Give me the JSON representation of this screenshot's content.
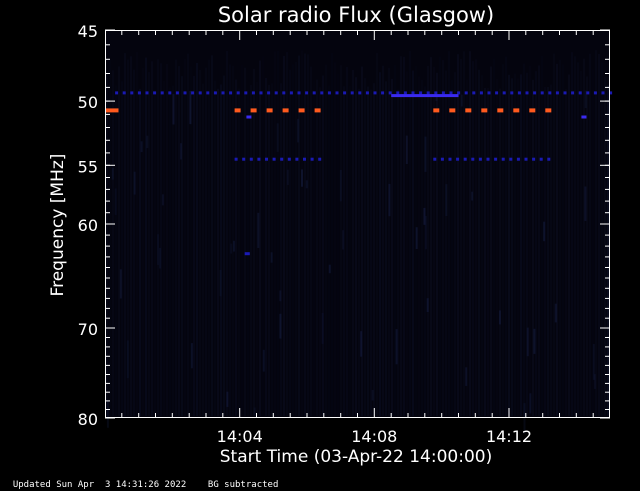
{
  "chart_data": {
    "type": "heatmap",
    "title": "Solar radio Flux (Glasgow)",
    "xlabel": "Start Time (03-Apr-22 14:00:00)",
    "ylabel": "Frequency [MHz]",
    "x_range_minutes": [
      0,
      15
    ],
    "x_ticks": [
      {
        "minute": 4,
        "label": "14:04"
      },
      {
        "minute": 8,
        "label": "14:08"
      },
      {
        "minute": 12,
        "label": "14:12"
      }
    ],
    "y_range_mhz": [
      45,
      80
    ],
    "y_scale": "log",
    "y_inverted": true,
    "y_ticks": [
      {
        "value": 45,
        "label": "45"
      },
      {
        "value": 50,
        "label": "50"
      },
      {
        "value": 55,
        "label": "55"
      },
      {
        "value": 60,
        "label": "60"
      },
      {
        "value": 70,
        "label": "70"
      },
      {
        "value": 80,
        "label": "80"
      }
    ],
    "colors": {
      "background": "#04040e",
      "weak": "#1a1ab4",
      "medium": "#3a2af0",
      "strong": "#ff5a1e",
      "peak": "#ff8a3c"
    },
    "features": [
      {
        "name": "band-49.4MHz",
        "freq_mhz": 49.4,
        "start_min": 0.3,
        "end_min": 15.0,
        "intensity": "weak",
        "pattern": "dashed"
      },
      {
        "name": "band-49.4MHz-continuous",
        "freq_mhz": 49.6,
        "start_min": 8.5,
        "end_min": 10.5,
        "intensity": "medium",
        "pattern": "solid"
      },
      {
        "name": "band-50.7MHz-a",
        "freq_mhz": 50.7,
        "start_min": 0.0,
        "end_min": 0.4,
        "intensity": "strong",
        "pattern": "solid"
      },
      {
        "name": "band-50.7MHz-b",
        "freq_mhz": 50.7,
        "start_min": 3.85,
        "end_min": 6.45,
        "intensity": "strong",
        "pattern": "dashed"
      },
      {
        "name": "band-50.7MHz-c",
        "freq_mhz": 50.7,
        "start_min": 9.75,
        "end_min": 13.35,
        "intensity": "strong",
        "pattern": "dashed"
      },
      {
        "name": "band-54.5MHz-a",
        "freq_mhz": 54.5,
        "start_min": 3.85,
        "end_min": 6.45,
        "intensity": "weak",
        "pattern": "dashed"
      },
      {
        "name": "band-54.5MHz-b",
        "freq_mhz": 54.5,
        "start_min": 9.75,
        "end_min": 13.35,
        "intensity": "weak",
        "pattern": "dashed"
      },
      {
        "name": "blip-51.2MHz",
        "freq_mhz": 51.2,
        "start_min": 4.2,
        "end_min": 4.35,
        "intensity": "medium",
        "pattern": "solid"
      },
      {
        "name": "blip-51.2MHz-late",
        "freq_mhz": 51.2,
        "start_min": 14.15,
        "end_min": 14.3,
        "intensity": "medium",
        "pattern": "solid"
      },
      {
        "name": "blip-62.7MHz",
        "freq_mhz": 62.7,
        "start_min": 4.15,
        "end_min": 4.3,
        "intensity": "weak",
        "pattern": "solid"
      }
    ]
  },
  "footer": {
    "updated": "Updated Sun Apr  3 14:31:26 2022",
    "bg_note": "BG subtracted"
  }
}
